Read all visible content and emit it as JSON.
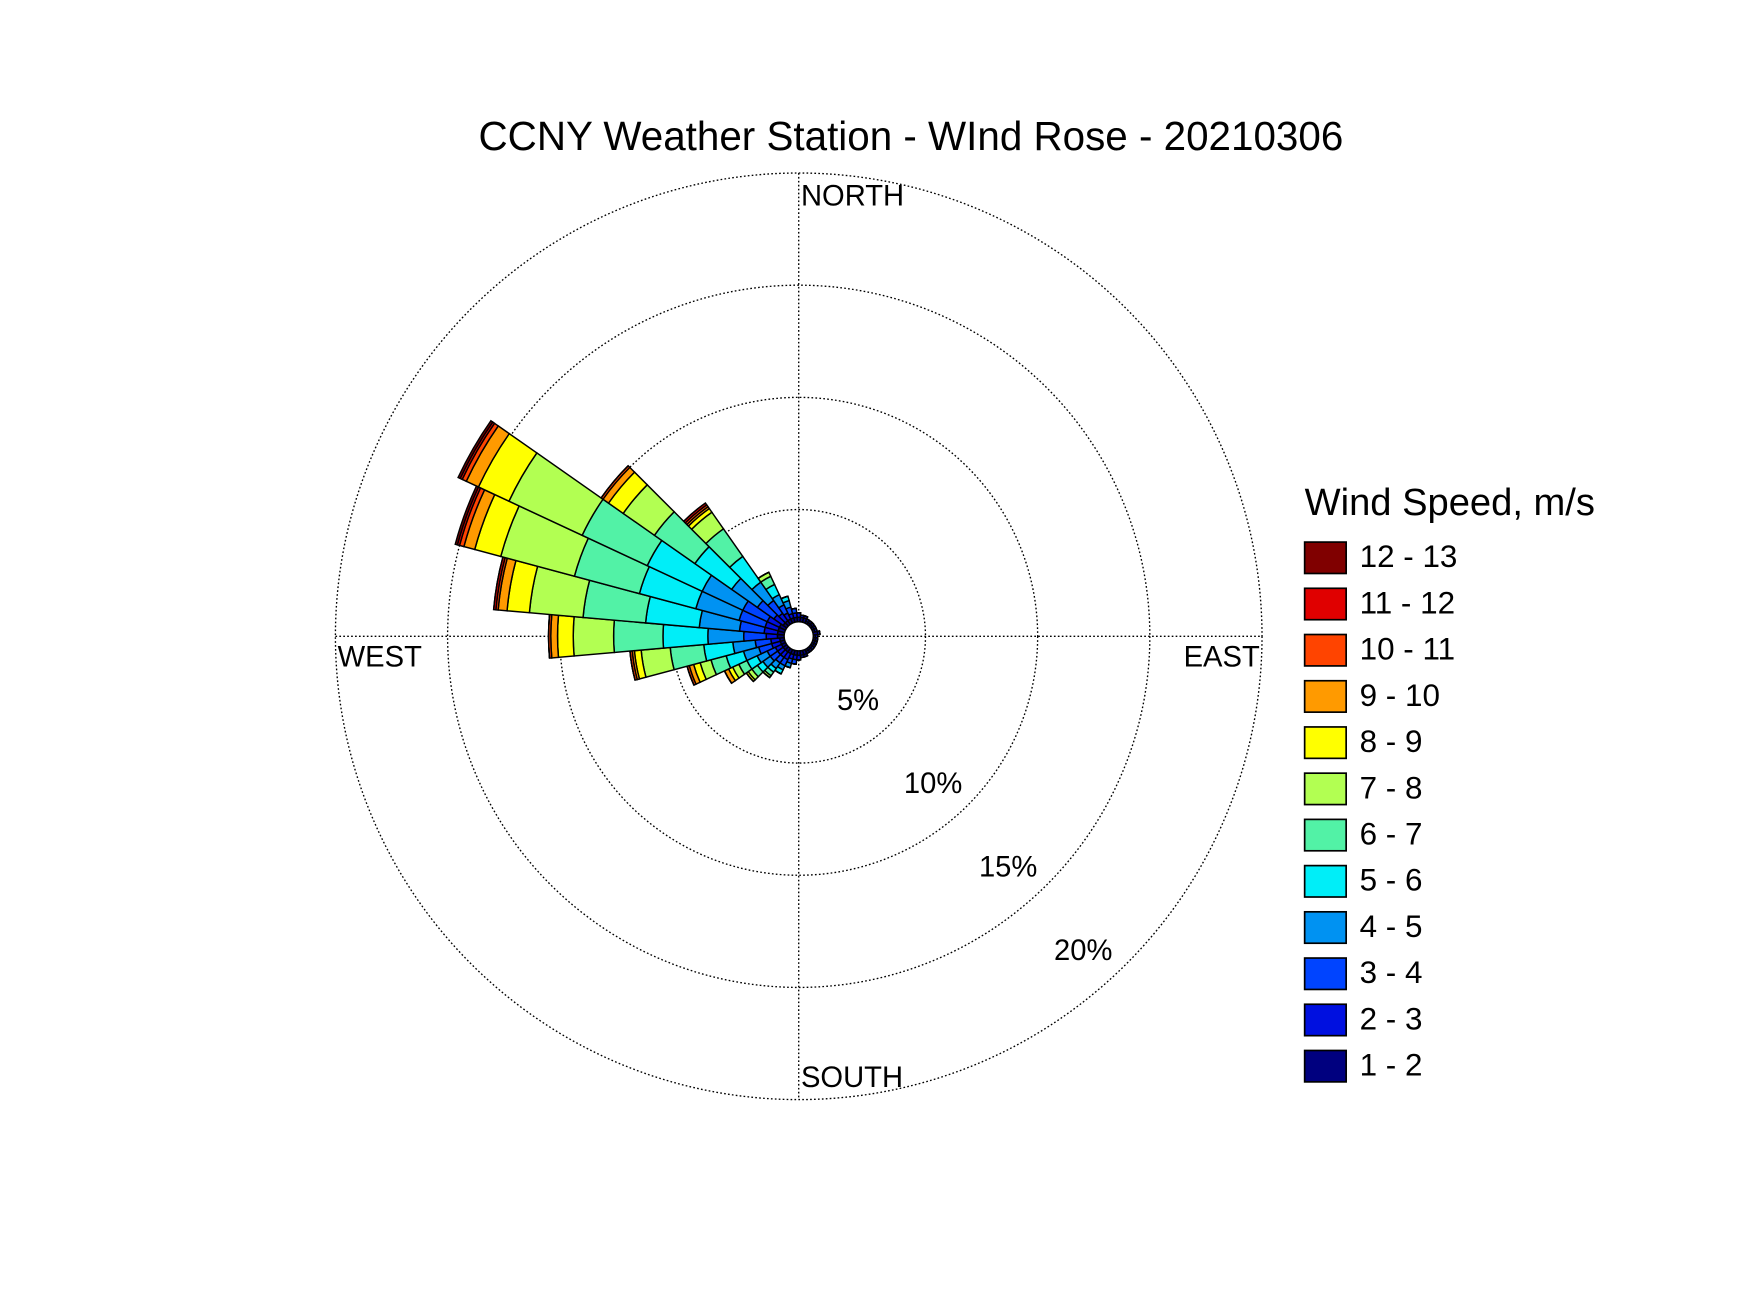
{
  "chart_data": {
    "type": "windrose",
    "title": "CCNY Weather Station - WInd Rose - 20210306",
    "direction_labels": [
      "NORTH",
      "EAST",
      "SOUTH",
      "WEST"
    ],
    "legend_title": "Wind Speed, m/s",
    "x": [
      0,
      10,
      20,
      30,
      40,
      50,
      60,
      70,
      80,
      90,
      100,
      110,
      120,
      130,
      140,
      150,
      160,
      170,
      180,
      190,
      200,
      210,
      220,
      230,
      240,
      250,
      260,
      270,
      280,
      290,
      300,
      310,
      320,
      330,
      340,
      350
    ],
    "rlim": [
      0,
      20
    ],
    "rticks": [
      {
        "value": 5,
        "label": "5%"
      },
      {
        "value": 10,
        "label": "10%"
      },
      {
        "value": 15,
        "label": "15%"
      },
      {
        "value": 20,
        "label": "20%"
      }
    ],
    "grid": true,
    "legend": "right",
    "series": [
      {
        "name": "1 - 2",
        "color": "#00007f",
        "values": [
          0.2,
          0.2,
          0.2,
          0.1,
          0.1,
          0.1,
          0.1,
          0.1,
          0.2,
          0.1,
          0.1,
          0.1,
          0.1,
          0.1,
          0.1,
          0.1,
          0.2,
          0.2,
          0.2,
          0.2,
          0.2,
          0.2,
          0.2,
          0.2,
          0.2,
          0.2,
          0.2,
          0.3,
          0.3,
          0.3,
          0.3,
          0.2,
          0.2,
          0.2,
          0.2,
          0.2
        ]
      },
      {
        "name": "2 - 3",
        "color": "#0010e0",
        "values": [
          0.2,
          0.1,
          0.1,
          0.1,
          0.1,
          0.1,
          0.1,
          0.1,
          0.1,
          0.1,
          0.1,
          0.1,
          0.1,
          0.1,
          0.1,
          0.1,
          0.1,
          0.1,
          0.2,
          0.2,
          0.2,
          0.3,
          0.3,
          0.3,
          0.3,
          0.4,
          0.4,
          0.5,
          0.6,
          0.6,
          0.6,
          0.5,
          0.4,
          0.3,
          0.2,
          0.2
        ]
      },
      {
        "name": "3 - 4",
        "color": "#0044ff",
        "values": [
          0,
          0,
          0,
          0,
          0,
          0,
          0,
          0,
          0,
          0,
          0,
          0,
          0,
          0,
          0,
          0,
          0,
          0,
          0,
          0.2,
          0.2,
          0.3,
          0.3,
          0.4,
          0.4,
          0.6,
          0.7,
          1.0,
          1.1,
          1.2,
          1.2,
          0.9,
          0.7,
          0.4,
          0.3,
          0.2
        ]
      },
      {
        "name": "4 - 5",
        "color": "#0092f2",
        "values": [
          0,
          0,
          0,
          0,
          0,
          0,
          0,
          0,
          0,
          0,
          0,
          0,
          0,
          0,
          0,
          0,
          0,
          0,
          0,
          0,
          0.2,
          0.2,
          0.3,
          0.4,
          0.5,
          0.7,
          1.0,
          1.6,
          1.8,
          2.0,
          2.0,
          1.4,
          1.0,
          0.5,
          0.3,
          0
        ]
      },
      {
        "name": "5 - 6",
        "color": "#00eef8",
        "values": [
          0,
          0,
          0,
          0,
          0,
          0,
          0,
          0,
          0,
          0,
          0,
          0,
          0,
          0,
          0,
          0,
          0,
          0,
          0,
          0,
          0,
          0.2,
          0.2,
          0.3,
          0.5,
          0.8,
          1.3,
          2.0,
          2.4,
          2.6,
          2.7,
          2.0,
          1.4,
          0.5,
          0.2,
          0
        ]
      },
      {
        "name": "6 - 7",
        "color": "#52f2a6",
        "values": [
          0,
          0,
          0,
          0,
          0,
          0,
          0,
          0,
          0,
          0,
          0,
          0,
          0,
          0,
          0,
          0,
          0,
          0,
          0,
          0,
          0,
          0,
          0.2,
          0.3,
          0.4,
          0.7,
          1.5,
          2.2,
          2.8,
          3.0,
          3.2,
          2.2,
          1.5,
          0.4,
          0,
          0
        ]
      },
      {
        "name": "7 - 8",
        "color": "#b2ff52",
        "values": [
          0,
          0,
          0,
          0,
          0,
          0,
          0,
          0,
          0,
          0,
          0,
          0,
          0,
          0,
          0,
          0,
          0,
          0,
          0,
          0,
          0,
          0,
          0.1,
          0.2,
          0.3,
          0.5,
          1.3,
          1.8,
          2.4,
          3.4,
          3.6,
          1.7,
          0.9,
          0.2,
          0,
          0
        ]
      },
      {
        "name": "8 - 9",
        "color": "#ffff00",
        "values": [
          0,
          0,
          0,
          0,
          0,
          0,
          0,
          0,
          0,
          0,
          0,
          0,
          0,
          0,
          0,
          0,
          0,
          0,
          0,
          0,
          0,
          0,
          0,
          0.1,
          0.2,
          0.3,
          0.3,
          0.7,
          1.0,
          1.2,
          1.5,
          0.8,
          0.2,
          0,
          0,
          0
        ]
      },
      {
        "name": "9 - 10",
        "color": "#ff9a00",
        "values": [
          0,
          0,
          0,
          0,
          0,
          0,
          0,
          0,
          0,
          0,
          0,
          0,
          0,
          0,
          0,
          0,
          0,
          0,
          0,
          0,
          0,
          0,
          0,
          0,
          0.2,
          0.2,
          0.1,
          0.3,
          0.4,
          0.5,
          0.6,
          0.3,
          0.1,
          0,
          0,
          0
        ]
      },
      {
        "name": "10 - 11",
        "color": "#ff4400",
        "values": [
          0,
          0,
          0,
          0,
          0,
          0,
          0,
          0,
          0,
          0,
          0,
          0,
          0,
          0,
          0,
          0,
          0,
          0,
          0,
          0,
          0,
          0,
          0,
          0,
          0,
          0.1,
          0.1,
          0.1,
          0.1,
          0.2,
          0.2,
          0.1,
          0.1,
          0,
          0,
          0
        ]
      },
      {
        "name": "11 - 12",
        "color": "#e00000",
        "values": [
          0,
          0,
          0,
          0,
          0,
          0,
          0,
          0,
          0,
          0,
          0,
          0,
          0,
          0,
          0,
          0,
          0,
          0,
          0,
          0,
          0,
          0,
          0,
          0,
          0,
          0,
          0,
          0,
          0.1,
          0.1,
          0.1,
          0,
          0.1,
          0,
          0,
          0
        ]
      },
      {
        "name": "12 - 13",
        "color": "#800000",
        "values": [
          0,
          0,
          0,
          0,
          0,
          0,
          0,
          0,
          0,
          0,
          0,
          0,
          0,
          0,
          0,
          0,
          0,
          0,
          0,
          0,
          0,
          0,
          0,
          0,
          0,
          0,
          0,
          0,
          0,
          0.1,
          0.1,
          0,
          0,
          0,
          0,
          0
        ]
      }
    ]
  }
}
